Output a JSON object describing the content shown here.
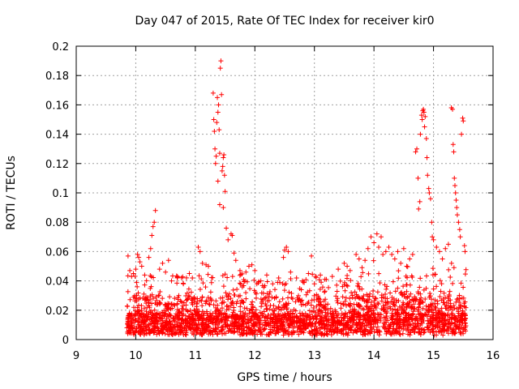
{
  "chart_data": {
    "type": "scatter",
    "title": "Day 047 of 2015, Rate Of TEC Index for receiver kir0",
    "xlabel": "GPS time / hours",
    "ylabel": "ROTI / TECUs",
    "xlim": [
      9,
      16
    ],
    "ylim": [
      0,
      0.2
    ],
    "x_ticks": [
      9,
      10,
      11,
      12,
      13,
      14,
      15,
      16
    ],
    "x_tick_labels": [
      "9",
      "10",
      "11",
      "12",
      "13",
      "14",
      "15",
      "16"
    ],
    "y_ticks": [
      0,
      0.02,
      0.04,
      0.06,
      0.08,
      0.1,
      0.12,
      0.14,
      0.16,
      0.18,
      0.2
    ],
    "y_tick_labels": [
      "0",
      "0.02",
      "0.04",
      "0.06",
      "0.08",
      "0.1",
      "0.12",
      "0.14",
      "0.16",
      "0.18",
      "0.2"
    ],
    "grid": true,
    "marker": "+",
    "marker_color": "#ff0000",
    "series": [
      {
        "name": "ROTI",
        "note": "dense background samples between ~9.85h and ~15.55h, mostly 0.002-0.045 TECU/min",
        "x_range": [
          9.85,
          15.55
        ],
        "background_y_range": [
          0.002,
          0.045
        ],
        "points": [
          [
            9.87,
            0.057
          ],
          [
            9.9,
            0.047
          ],
          [
            9.93,
            0.043
          ],
          [
            9.96,
            0.045
          ],
          [
            10.0,
            0.048
          ],
          [
            10.03,
            0.058
          ],
          [
            10.05,
            0.056
          ],
          [
            10.07,
            0.053
          ],
          [
            10.1,
            0.05
          ],
          [
            10.15,
            0.044
          ],
          [
            10.22,
            0.056
          ],
          [
            10.25,
            0.062
          ],
          [
            10.27,
            0.071
          ],
          [
            10.29,
            0.077
          ],
          [
            10.31,
            0.08
          ],
          [
            10.33,
            0.088
          ],
          [
            10.4,
            0.048
          ],
          [
            10.45,
            0.052
          ],
          [
            10.5,
            0.046
          ],
          [
            10.55,
            0.054
          ],
          [
            10.6,
            0.04
          ],
          [
            10.7,
            0.043
          ],
          [
            10.8,
            0.038
          ],
          [
            10.9,
            0.045
          ],
          [
            10.95,
            0.042
          ],
          [
            11.05,
            0.063
          ],
          [
            11.08,
            0.06
          ],
          [
            11.12,
            0.052
          ],
          [
            11.18,
            0.051
          ],
          [
            11.22,
            0.05
          ],
          [
            11.3,
            0.168
          ],
          [
            11.31,
            0.15
          ],
          [
            11.32,
            0.142
          ],
          [
            11.33,
            0.13
          ],
          [
            11.34,
            0.12
          ],
          [
            11.35,
            0.125
          ],
          [
            11.36,
            0.148
          ],
          [
            11.37,
            0.165
          ],
          [
            11.38,
            0.155
          ],
          [
            11.39,
            0.16
          ],
          [
            11.4,
            0.143
          ],
          [
            11.41,
            0.127
          ],
          [
            11.42,
            0.185
          ],
          [
            11.43,
            0.19
          ],
          [
            11.44,
            0.167
          ],
          [
            11.45,
            0.115
          ],
          [
            11.46,
            0.118
          ],
          [
            11.47,
            0.124
          ],
          [
            11.48,
            0.126
          ],
          [
            11.49,
            0.112
          ],
          [
            11.5,
            0.101
          ],
          [
            11.38,
            0.108
          ],
          [
            11.41,
            0.092
          ],
          [
            11.47,
            0.09
          ],
          [
            11.52,
            0.076
          ],
          [
            11.55,
            0.068
          ],
          [
            11.6,
            0.072
          ],
          [
            11.62,
            0.071
          ],
          [
            11.65,
            0.059
          ],
          [
            11.68,
            0.054
          ],
          [
            11.75,
            0.047
          ],
          [
            11.85,
            0.046
          ],
          [
            11.9,
            0.05
          ],
          [
            11.95,
            0.051
          ],
          [
            12.0,
            0.047
          ],
          [
            12.1,
            0.04
          ],
          [
            12.2,
            0.044
          ],
          [
            12.3,
            0.038
          ],
          [
            12.4,
            0.042
          ],
          [
            12.5,
            0.061
          ],
          [
            12.53,
            0.063
          ],
          [
            12.56,
            0.06
          ],
          [
            12.48,
            0.056
          ],
          [
            12.6,
            0.046
          ],
          [
            12.7,
            0.042
          ],
          [
            12.8,
            0.04
          ],
          [
            12.9,
            0.045
          ],
          [
            12.95,
            0.057
          ],
          [
            13.0,
            0.038
          ],
          [
            13.1,
            0.044
          ],
          [
            13.2,
            0.041
          ],
          [
            13.3,
            0.043
          ],
          [
            13.4,
            0.048
          ],
          [
            13.5,
            0.052
          ],
          [
            13.55,
            0.05
          ],
          [
            13.6,
            0.047
          ],
          [
            13.7,
            0.058
          ],
          [
            13.75,
            0.055
          ],
          [
            13.8,
            0.049
          ],
          [
            13.85,
            0.054
          ],
          [
            13.9,
            0.062
          ],
          [
            13.95,
            0.07
          ],
          [
            14.0,
            0.066
          ],
          [
            14.05,
            0.072
          ],
          [
            14.08,
            0.063
          ],
          [
            14.12,
            0.07
          ],
          [
            14.15,
            0.058
          ],
          [
            14.2,
            0.06
          ],
          [
            14.25,
            0.063
          ],
          [
            14.3,
            0.058
          ],
          [
            14.35,
            0.055
          ],
          [
            14.4,
            0.06
          ],
          [
            14.45,
            0.052
          ],
          [
            14.5,
            0.062
          ],
          [
            14.55,
            0.05
          ],
          [
            14.6,
            0.055
          ],
          [
            14.65,
            0.058
          ],
          [
            14.7,
            0.128
          ],
          [
            14.72,
            0.13
          ],
          [
            14.74,
            0.11
          ],
          [
            14.75,
            0.089
          ],
          [
            14.77,
            0.094
          ],
          [
            14.78,
            0.14
          ],
          [
            14.8,
            0.153
          ],
          [
            14.81,
            0.15
          ],
          [
            14.82,
            0.156
          ],
          [
            14.83,
            0.157
          ],
          [
            14.84,
            0.155
          ],
          [
            14.85,
            0.145
          ],
          [
            14.86,
            0.152
          ],
          [
            14.88,
            0.137
          ],
          [
            14.89,
            0.124
          ],
          [
            14.9,
            0.112
          ],
          [
            14.92,
            0.103
          ],
          [
            14.93,
            0.1
          ],
          [
            14.95,
            0.096
          ],
          [
            14.97,
            0.08
          ],
          [
            14.98,
            0.07
          ],
          [
            15.0,
            0.068
          ],
          [
            15.05,
            0.063
          ],
          [
            15.1,
            0.06
          ],
          [
            15.15,
            0.055
          ],
          [
            15.2,
            0.062
          ],
          [
            15.25,
            0.065
          ],
          [
            15.3,
            0.158
          ],
          [
            15.32,
            0.157
          ],
          [
            15.33,
            0.133
          ],
          [
            15.34,
            0.128
          ],
          [
            15.35,
            0.11
          ],
          [
            15.36,
            0.105
          ],
          [
            15.37,
            0.1
          ],
          [
            15.38,
            0.095
          ],
          [
            15.39,
            0.09
          ],
          [
            15.4,
            0.085
          ],
          [
            15.42,
            0.08
          ],
          [
            15.44,
            0.075
          ],
          [
            15.45,
            0.07
          ],
          [
            15.47,
            0.14
          ],
          [
            15.49,
            0.151
          ],
          [
            15.5,
            0.149
          ],
          [
            15.52,
            0.064
          ],
          [
            15.53,
            0.06
          ]
        ]
      }
    ]
  }
}
